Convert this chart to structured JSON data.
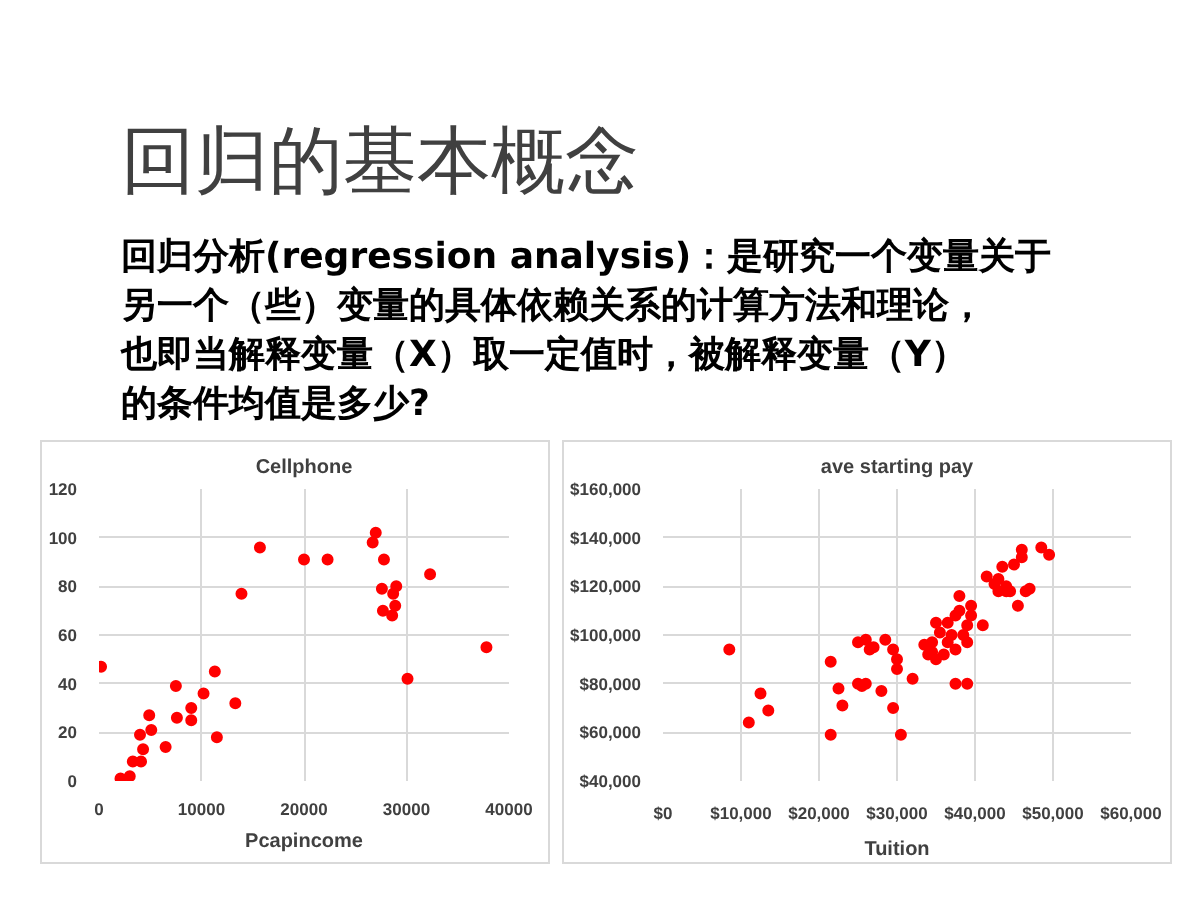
{
  "chart_data": [
    {
      "type": "other",
      "title": "回归的基本概念",
      "annotations": [
        "回归分析(regression analysis)：是研究一个变量关于",
        "另一个（些）变量的具体依赖关系的计算方法和理论，",
        "也即当解释变量（X）取一定值时，被解释变量（Y）",
        "的条件均值是多少?"
      ]
    },
    {
      "type": "scatter",
      "title": "Cellphone",
      "xlabel": "Pcapincome",
      "color": "#ff0000",
      "marker": "circle",
      "grid": true,
      "x": [
        200,
        2100,
        3000,
        3300,
        4100,
        4300,
        4000,
        4900,
        5100,
        6500,
        7500,
        7600,
        9000,
        9000,
        10200,
        11300,
        11500,
        13300,
        13900,
        15700,
        20000,
        22300,
        26700,
        27000,
        27800,
        27600,
        27700,
        28600,
        28700,
        29000,
        28900,
        30100,
        32300,
        37800
      ],
      "values": [
        47,
        1,
        2,
        8,
        8,
        13,
        19,
        27,
        21,
        14,
        39,
        26,
        30,
        25,
        36,
        45,
        18,
        32,
        77,
        96,
        91,
        91,
        98,
        102,
        91,
        79,
        70,
        68,
        77,
        80,
        72,
        42,
        85,
        55
      ],
      "xlim": [
        0,
        40000
      ],
      "xticks": [
        0,
        10000,
        20000,
        30000,
        40000
      ],
      "ylim": [
        0,
        120
      ],
      "yticks": [
        0,
        20,
        40,
        60,
        80,
        100,
        120
      ]
    },
    {
      "type": "scatter",
      "title": "ave starting pay",
      "xlabel": "Tuition",
      "color": "#ff0000",
      "marker": "circle",
      "grid": true,
      "x": [
        8500,
        11000,
        12500,
        13500,
        21500,
        21500,
        22500,
        23000,
        25000,
        25500,
        25000,
        26000,
        26000,
        26500,
        27000,
        28500,
        28000,
        29500,
        30000,
        30000,
        29500,
        30500,
        32000,
        33500,
        34000,
        34500,
        34500,
        35000,
        35000,
        35500,
        36000,
        36500,
        37000,
        37500,
        36500,
        37500,
        37500,
        38000,
        38000,
        38500,
        39000,
        39000,
        39000,
        39500,
        39500,
        41000,
        41500,
        42500,
        43000,
        43000,
        43500,
        44000,
        45000,
        45500,
        46000,
        46000,
        46500,
        47000,
        48500,
        49500,
        44000,
        44500
      ],
      "values": [
        94000,
        64000,
        76000,
        69000,
        89000,
        59000,
        78000,
        71000,
        97000,
        79000,
        80000,
        98000,
        80000,
        94000,
        95000,
        98000,
        77000,
        94000,
        90000,
        86000,
        70000,
        59000,
        82000,
        96000,
        92000,
        93000,
        97000,
        90000,
        105000,
        101000,
        92000,
        97000,
        100000,
        94000,
        105000,
        108000,
        80000,
        116000,
        110000,
        100000,
        80000,
        104000,
        97000,
        112000,
        108000,
        104000,
        124000,
        121000,
        123000,
        118000,
        128000,
        118000,
        129000,
        112000,
        135000,
        132000,
        118000,
        119000,
        136000,
        133000,
        120000,
        118000
      ],
      "xlim": [
        0,
        60000
      ],
      "xticks": [
        {
          "value": 0,
          "label": "$0"
        },
        {
          "value": 10000,
          "label": "$10,000"
        },
        {
          "value": 20000,
          "label": "$20,000"
        },
        {
          "value": 30000,
          "label": "$30,000"
        },
        {
          "value": 40000,
          "label": "$40,000"
        },
        {
          "value": 50000,
          "label": "$50,000"
        },
        {
          "value": 60000,
          "label": "$60,000"
        }
      ],
      "ylim": [
        40000,
        160000
      ],
      "yticks": [
        {
          "value": 40000,
          "label": "$40,000"
        },
        {
          "value": 60000,
          "label": "$60,000"
        },
        {
          "value": 80000,
          "label": "$80,000"
        },
        {
          "value": 100000,
          "label": "$100,000"
        },
        {
          "value": 120000,
          "label": "$120,000"
        },
        {
          "value": 140000,
          "label": "$140,000"
        },
        {
          "value": 160000,
          "label": "$160,000"
        }
      ]
    }
  ]
}
